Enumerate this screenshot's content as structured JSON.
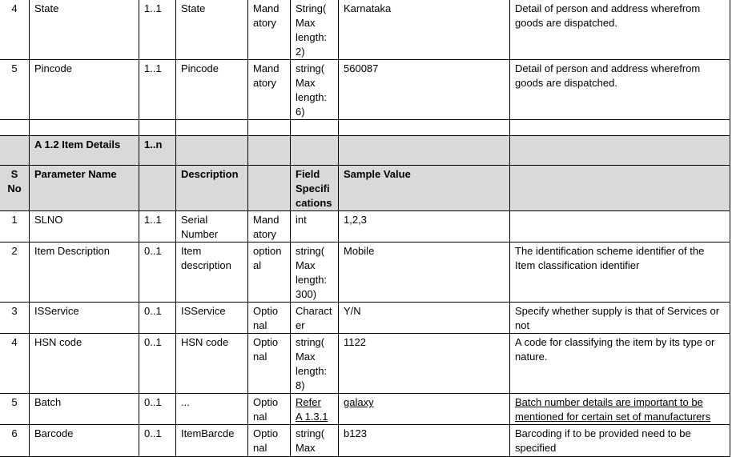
{
  "table": {
    "rows": [
      {
        "type": "data",
        "cells": [
          "4",
          "State",
          "1..1",
          "State",
          "Mand\natory",
          "String(\nMax\nlength:\n2)",
          "Karnataka",
          "Detail of person and address wherefrom goods are dispatched."
        ]
      },
      {
        "type": "data",
        "cells": [
          "5",
          "Pincode",
          "1..1",
          "Pincode",
          "Mand\natory",
          "string(\nMax\nlength:\n6)",
          "560087",
          "Detail of person and address wherefrom goods are dispatched."
        ]
      },
      {
        "type": "empty",
        "cells": [
          "",
          "",
          "",
          "",
          "",
          "",
          "",
          ""
        ]
      },
      {
        "type": "section",
        "cells": [
          "",
          "A 1.2        Item Details",
          "1..n",
          "",
          "",
          "",
          "",
          ""
        ]
      },
      {
        "type": "header",
        "cells": [
          "S\nNo",
          "Parameter Name",
          "",
          "Description",
          "",
          "Field\nSpecifi\ncations",
          "Sample Value",
          ""
        ]
      },
      {
        "type": "data",
        "cells": [
          "1",
          "SLNO",
          "1..1",
          "Serial Number",
          "Mand\natory",
          "int",
          "1,2,3",
          ""
        ]
      },
      {
        "type": "data",
        "cells": [
          "2",
          "Item Description",
          "0..1",
          "Item description",
          "option\nal",
          "string(\nMax\nlength:\n300)",
          "Mobile",
          "The identification scheme identifier of the Item classification identifier"
        ]
      },
      {
        "type": "data",
        "cells": [
          "3",
          "ISService",
          "0..1",
          "ISService",
          "Optio\nnal",
          "Charact\ner",
          "Y/N",
          "Specify whether supply is that of Services or not"
        ]
      },
      {
        "type": "data",
        "cells": [
          "4",
          "HSN code",
          "0..1",
          "HSN code",
          "Optio\nnal",
          "string(\nMax\nlength:\n8)",
          "1122",
          "A code for classifying the item by its type or nature."
        ]
      },
      {
        "type": "data",
        "underline": [
          5,
          6,
          7
        ],
        "cells": [
          "5",
          "Batch",
          "0..1",
          "...",
          "Optio\nnal",
          "Refer\nA 1.3.1",
          "galaxy",
          "Batch number details are important to be mentioned for certain  set of manufacturers"
        ]
      },
      {
        "type": "data",
        "cells": [
          "6",
          "Barcode",
          "0..1",
          "ItemBarcde",
          "Optio\nnal",
          "string(\nMax",
          "b123",
          "Barcoding if to be provided need to be specified"
        ]
      }
    ]
  },
  "colors": {
    "header_fill": "#d9d9d9",
    "border": "#000000"
  }
}
